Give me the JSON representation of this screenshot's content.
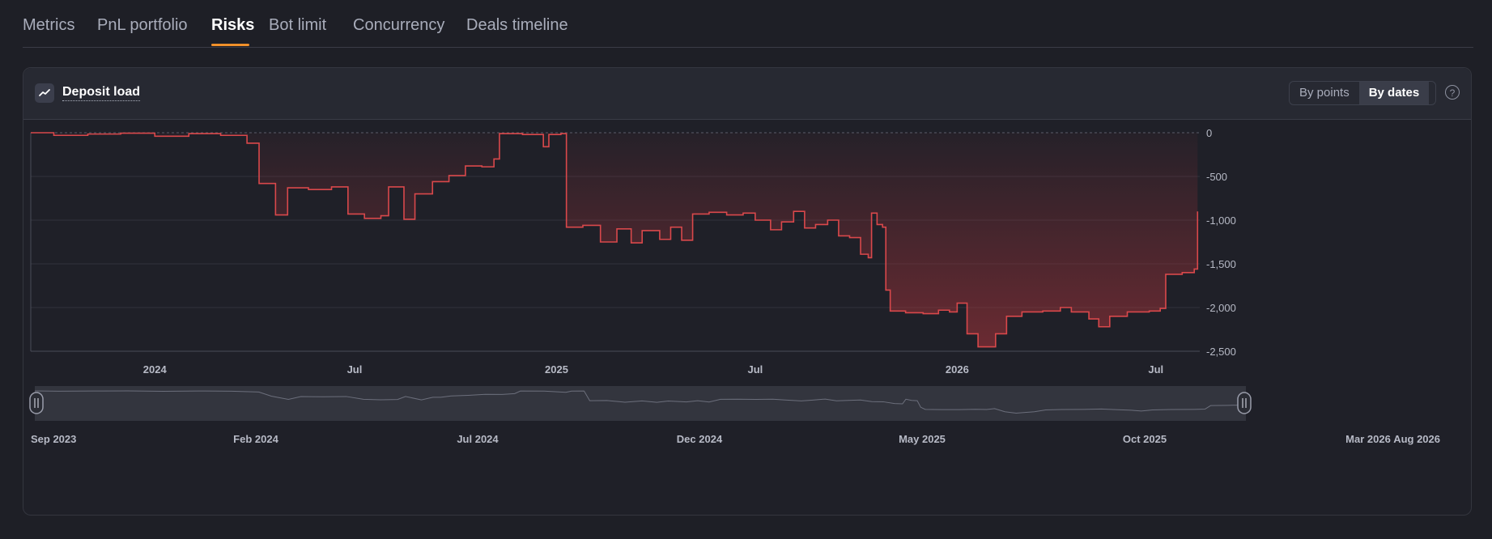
{
  "tabs": [
    {
      "label": "Metrics"
    },
    {
      "label": "PnL portfolio"
    },
    {
      "label": "Risks"
    },
    {
      "label": "Bot limit"
    },
    {
      "label": "Concurrency"
    },
    {
      "label": "Deals timeline"
    }
  ],
  "active_tab": "Risks",
  "card": {
    "title": "Deposit load",
    "view_toggle": {
      "by_points": "By points",
      "by_dates": "By dates",
      "selected": "By dates"
    },
    "help_icon": "?"
  },
  "colors": {
    "line": "#d9484b",
    "fill": "#a8333a",
    "accent": "#f0902a",
    "grid": "#34363f"
  },
  "chart_data": {
    "type": "area",
    "x_type": "date",
    "y_ticks": [
      "0",
      "-500",
      "-1,000",
      "-1,500",
      "-2,000",
      "-2,500"
    ],
    "ylim": [
      -2500,
      0
    ],
    "x_ticks": [
      "2024",
      "Jul",
      "2025",
      "Jul",
      "2026",
      "Jul"
    ],
    "grid": true,
    "series": [
      {
        "points": [
          [
            "2023-09-10",
            0
          ],
          [
            "2023-10-01",
            -30
          ],
          [
            "2023-11-01",
            -15
          ],
          [
            "2023-12-01",
            -5
          ],
          [
            "2024-01-01",
            -40
          ],
          [
            "2024-02-01",
            -10
          ],
          [
            "2024-03-01",
            -30
          ],
          [
            "2024-03-25",
            -120
          ],
          [
            "2024-04-05",
            -580
          ],
          [
            "2024-04-20",
            -940
          ],
          [
            "2024-05-01",
            -630
          ],
          [
            "2024-05-20",
            -650
          ],
          [
            "2024-06-10",
            -620
          ],
          [
            "2024-06-25",
            -930
          ],
          [
            "2024-07-10",
            -980
          ],
          [
            "2024-07-25",
            -950
          ],
          [
            "2024-08-01",
            -620
          ],
          [
            "2024-08-15",
            -990
          ],
          [
            "2024-08-25",
            -700
          ],
          [
            "2024-09-01",
            -700
          ],
          [
            "2024-09-10",
            -560
          ],
          [
            "2024-09-25",
            -490
          ],
          [
            "2024-10-10",
            -380
          ],
          [
            "2024-10-25",
            -390
          ],
          [
            "2024-11-05",
            -300
          ],
          [
            "2024-11-10",
            -10
          ],
          [
            "2024-12-01",
            -20
          ],
          [
            "2024-12-20",
            -160
          ],
          [
            "2024-12-25",
            -20
          ],
          [
            "2025-01-05",
            -10
          ],
          [
            "2025-01-10",
            -1080
          ],
          [
            "2025-01-25",
            -1060
          ],
          [
            "2025-02-10",
            -1250
          ],
          [
            "2025-02-25",
            -1100
          ],
          [
            "2025-03-10",
            -1260
          ],
          [
            "2025-03-20",
            -1120
          ],
          [
            "2025-04-05",
            -1220
          ],
          [
            "2025-04-15",
            -1080
          ],
          [
            "2025-04-25",
            -1230
          ],
          [
            "2025-05-05",
            -930
          ],
          [
            "2025-05-20",
            -910
          ],
          [
            "2025-06-05",
            -940
          ],
          [
            "2025-06-20",
            -920
          ],
          [
            "2025-07-01",
            -1000
          ],
          [
            "2025-07-15",
            -1110
          ],
          [
            "2025-07-25",
            -1020
          ],
          [
            "2025-08-05",
            -900
          ],
          [
            "2025-08-15",
            -1090
          ],
          [
            "2025-08-25",
            -1050
          ],
          [
            "2025-09-05",
            -1000
          ],
          [
            "2025-09-15",
            -1180
          ],
          [
            "2025-09-25",
            -1200
          ],
          [
            "2025-10-05",
            -1390
          ],
          [
            "2025-10-12",
            -1430
          ],
          [
            "2025-10-15",
            -920
          ],
          [
            "2025-10-20",
            -1050
          ],
          [
            "2025-10-25",
            -1080
          ],
          [
            "2025-10-28",
            -1800
          ],
          [
            "2025-11-01",
            -2040
          ],
          [
            "2025-11-15",
            -2060
          ],
          [
            "2025-12-01",
            -2070
          ],
          [
            "2025-12-15",
            -2030
          ],
          [
            "2025-12-25",
            -2050
          ],
          [
            "2026-01-01",
            -1950
          ],
          [
            "2026-01-10",
            -2300
          ],
          [
            "2026-01-20",
            -2450
          ],
          [
            "2026-02-05",
            -2300
          ],
          [
            "2026-02-15",
            -2100
          ],
          [
            "2026-03-01",
            -2050
          ],
          [
            "2026-03-20",
            -2040
          ],
          [
            "2026-04-05",
            -2000
          ],
          [
            "2026-04-15",
            -2050
          ],
          [
            "2026-05-01",
            -2130
          ],
          [
            "2026-05-10",
            -2220
          ],
          [
            "2026-05-20",
            -2100
          ],
          [
            "2026-06-05",
            -2050
          ],
          [
            "2026-06-25",
            -2040
          ],
          [
            "2026-07-05",
            -2010
          ],
          [
            "2026-07-10",
            -1620
          ],
          [
            "2026-07-25",
            -1600
          ],
          [
            "2026-08-05",
            -1560
          ],
          [
            "2026-08-08",
            -900
          ]
        ]
      }
    ],
    "navigator": {
      "labels": [
        "Sep 2023",
        "Feb 2024",
        "Jul 2024",
        "Dec 2024",
        "May 2025",
        "Oct 2025",
        "Mar 2026",
        "Aug 2026"
      ]
    }
  }
}
